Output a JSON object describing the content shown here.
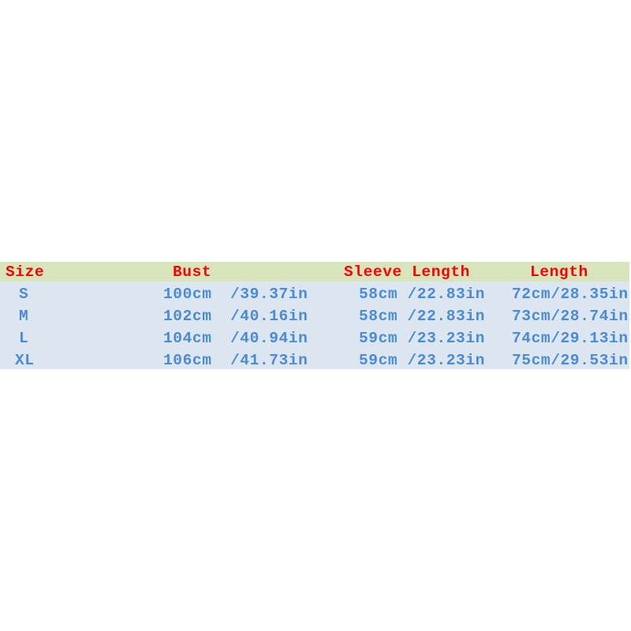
{
  "header": {
    "size": "Size",
    "bust": "Bust",
    "sleeve": "Sleeve Length",
    "length": "Length"
  },
  "rows": [
    {
      "size": "S",
      "bust_cm": "100cm",
      "bust_in": "/39.37in",
      "sleeve": "58cm /22.83in",
      "length": "72cm/28.35in"
    },
    {
      "size": "M",
      "bust_cm": "102cm",
      "bust_in": "/40.16in",
      "sleeve": "58cm /22.83in",
      "length": "73cm/28.74in"
    },
    {
      "size": "L",
      "bust_cm": "104cm",
      "bust_in": "/40.94in",
      "sleeve": "59cm /23.23in",
      "length": "74cm/29.13in"
    },
    {
      "size": "XL",
      "bust_cm": "106cm",
      "bust_in": "/41.73in",
      "sleeve": "59cm /23.23in",
      "length": "75cm/29.53in"
    }
  ],
  "colors": {
    "header_bg": "#d8e4bc",
    "body_bg": "#dce6f1",
    "header_text": "#ff0000",
    "body_text": "#4a8ad6"
  }
}
